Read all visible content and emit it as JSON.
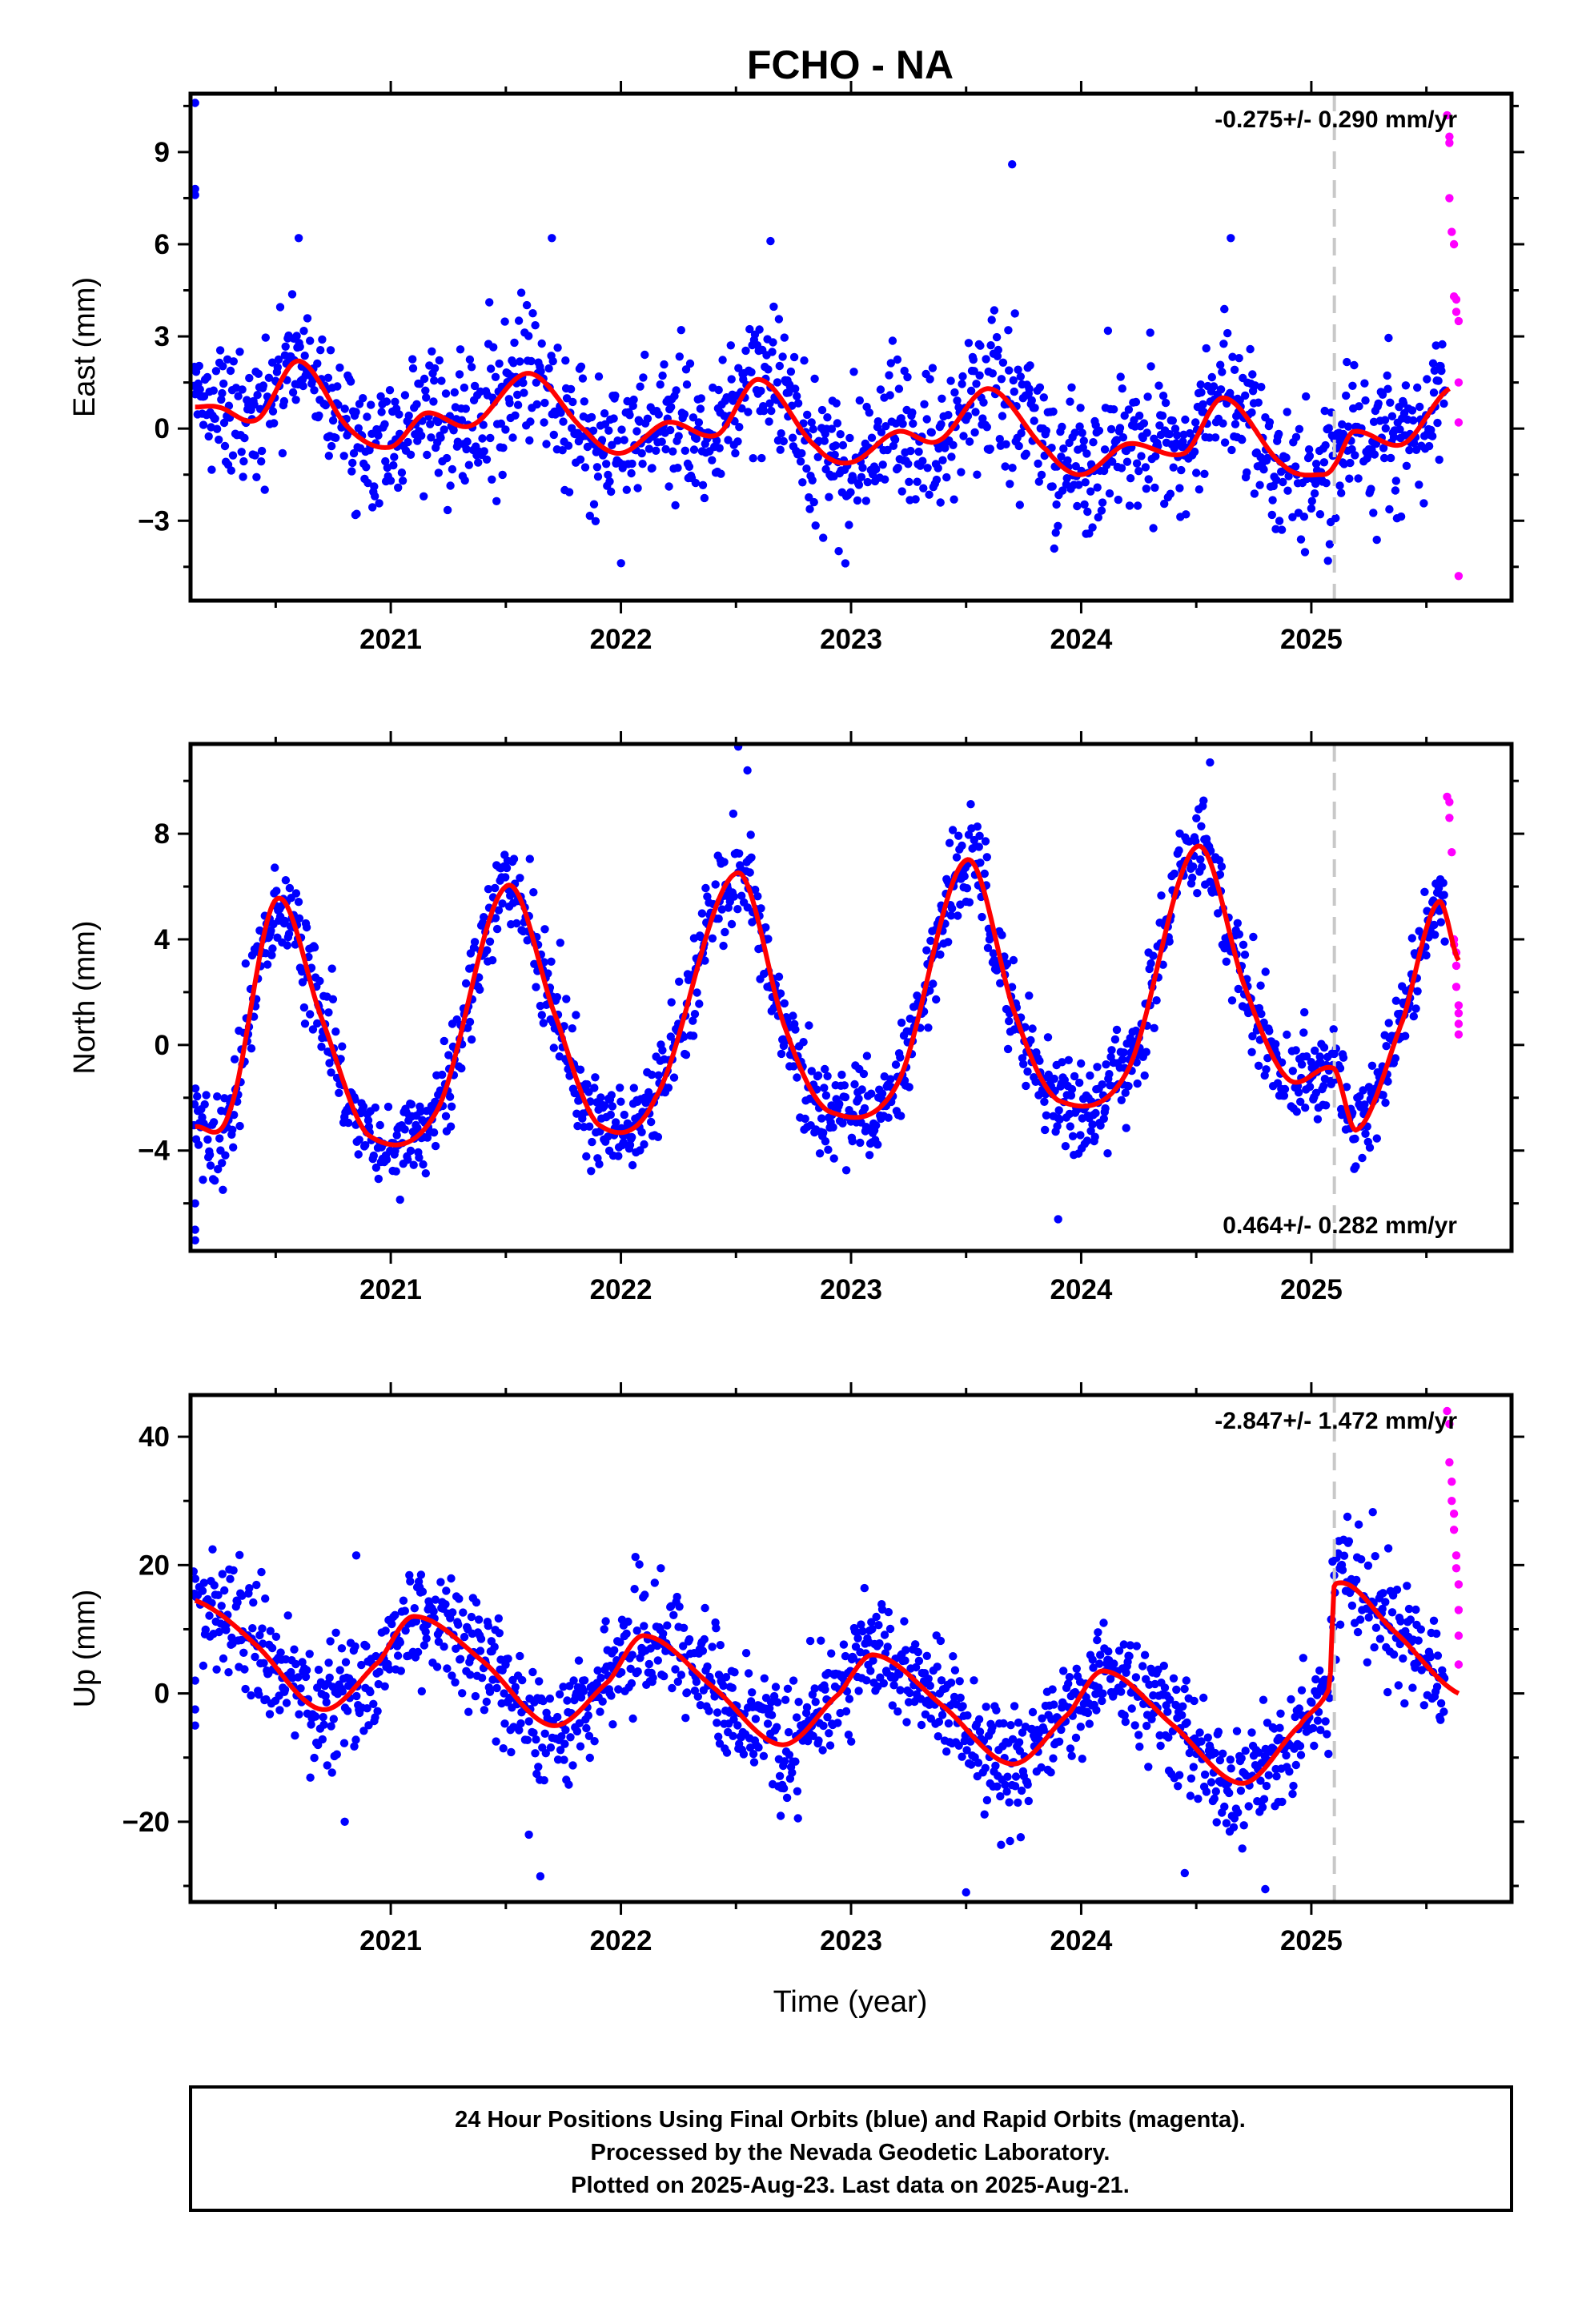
{
  "title": "FCHO - NA",
  "xlabel": "Time (year)",
  "footer": {
    "lines": [
      "24 Hour Positions Using Final Orbits (blue) and Rapid Orbits (magenta).",
      "Processed by the Nevada Geodetic Laboratory.",
      "Plotted on 2025-Aug-23. Last data on 2025-Aug-21."
    ]
  },
  "colors": {
    "final_orbits": "#0000ff",
    "rapid_orbits": "#ff00ff",
    "model": "#ff0000",
    "equipment_change": "#c8c8c8"
  },
  "chart_data": [
    {
      "type": "scatter",
      "component": "east",
      "ylabel": "East (mm)",
      "rate": "-0.275+/- 0.290 mm/yr",
      "rate_position": "top-right",
      "x_ticks": [
        2021,
        2022,
        2023,
        2024,
        2025
      ],
      "x_tick_labels": [
        "2021",
        "2022",
        "2023",
        "2024",
        "2025"
      ],
      "xlim": [
        2020.13,
        2025.87
      ],
      "y_ticks": [
        -3,
        0,
        3,
        6,
        9
      ],
      "y_tick_labels": [
        "−3",
        "0",
        "3",
        "6",
        "9"
      ],
      "ylim": [
        -5.6,
        10.9
      ],
      "offset_epoch": 2025.1,
      "rapid_start": 2025.58,
      "model": {
        "knots_x": [
          2020.15,
          2020.25,
          2020.42,
          2020.6,
          2020.82,
          2021.0,
          2021.15,
          2021.35,
          2021.6,
          2021.85,
          2022.0,
          2022.2,
          2022.42,
          2022.6,
          2022.85,
          2023.0,
          2023.2,
          2023.38,
          2023.6,
          2023.85,
          2024.0,
          2024.2,
          2024.45,
          2024.62,
          2024.88,
          2025.05,
          2025.1,
          2025.18,
          2025.4,
          2025.6
        ],
        "knots_y": [
          0.7,
          0.7,
          0.3,
          2.2,
          0.0,
          -0.6,
          0.5,
          0.1,
          1.8,
          -0.1,
          -0.8,
          0.2,
          -0.2,
          1.6,
          -0.6,
          -1.1,
          -0.1,
          -0.4,
          1.3,
          -0.7,
          -1.5,
          -0.5,
          -0.8,
          1.0,
          -1.2,
          -1.5,
          -1.2,
          -0.1,
          -0.5,
          1.3
        ],
        "noise": 1.1,
        "step_after_offset": 1.0
      },
      "outliers": [
        [
          2020.15,
          10.6
        ],
        [
          2020.15,
          7.8
        ],
        [
          2020.15,
          7.6
        ],
        [
          2023.7,
          8.6
        ],
        [
          2020.6,
          6.2
        ],
        [
          2021.7,
          6.2
        ],
        [
          2022.65,
          6.1
        ],
        [
          2024.65,
          6.2
        ]
      ],
      "rapid_points": [
        [
          2025.59,
          10.2
        ],
        [
          2025.6,
          9.5
        ],
        [
          2025.6,
          9.3
        ],
        [
          2025.6,
          7.5
        ],
        [
          2025.61,
          6.4
        ],
        [
          2025.62,
          6.0
        ],
        [
          2025.62,
          4.3
        ],
        [
          2025.63,
          4.2
        ],
        [
          2025.63,
          3.8
        ],
        [
          2025.64,
          3.5
        ],
        [
          2025.64,
          1.5
        ],
        [
          2025.64,
          0.2
        ],
        [
          2025.64,
          -4.8
        ]
      ]
    },
    {
      "type": "scatter",
      "component": "north",
      "ylabel": "North (mm)",
      "rate": "0.464+/- 0.282 mm/yr",
      "rate_position": "bottom-right",
      "x_ticks": [
        2021,
        2022,
        2023,
        2024,
        2025
      ],
      "x_tick_labels": [
        "2021",
        "2022",
        "2023",
        "2024",
        "2025"
      ],
      "xlim": [
        2020.13,
        2025.87
      ],
      "y_ticks": [
        -4,
        0,
        4,
        8
      ],
      "y_tick_labels": [
        "−4",
        "0",
        "4",
        "8"
      ],
      "ylim": [
        -7.8,
        11.4
      ],
      "offset_epoch": 2025.1,
      "rapid_start": 2025.58,
      "model": {
        "knots_x": [
          2020.15,
          2020.3,
          2020.5,
          2020.7,
          2020.9,
          2021.2,
          2021.5,
          2021.72,
          2021.9,
          2022.15,
          2022.5,
          2022.72,
          2022.9,
          2023.2,
          2023.5,
          2023.72,
          2023.9,
          2024.2,
          2024.5,
          2024.72,
          2024.9,
          2025.1,
          2025.2,
          2025.4,
          2025.55,
          2025.64
        ],
        "knots_y": [
          -3.1,
          -2.5,
          5.5,
          1.0,
          -3.4,
          -2.5,
          6.0,
          1.0,
          -3.0,
          -2.0,
          6.5,
          0.5,
          -2.5,
          -1.5,
          7.0,
          1.0,
          -2.1,
          -1.0,
          7.5,
          2.0,
          -1.3,
          -0.9,
          -3.2,
          1.0,
          5.4,
          3.2
        ],
        "noise": 0.9,
        "step_after_offset": -2.4
      },
      "outliers": [
        [
          2020.15,
          -7.0
        ],
        [
          2020.15,
          -7.4
        ],
        [
          2020.15,
          -6.0
        ],
        [
          2022.51,
          11.3
        ],
        [
          2022.55,
          10.4
        ],
        [
          2023.9,
          -6.6
        ],
        [
          2024.56,
          10.7
        ]
      ],
      "rapid_points": [
        [
          2025.59,
          9.4
        ],
        [
          2025.6,
          9.2
        ],
        [
          2025.6,
          8.6
        ],
        [
          2025.61,
          7.3
        ],
        [
          2025.62,
          4.0
        ],
        [
          2025.62,
          3.8
        ],
        [
          2025.63,
          3.5
        ],
        [
          2025.63,
          3.0
        ],
        [
          2025.63,
          2.2
        ],
        [
          2025.64,
          1.5
        ],
        [
          2025.64,
          1.2
        ],
        [
          2025.64,
          0.8
        ],
        [
          2025.64,
          0.4
        ]
      ]
    },
    {
      "type": "scatter",
      "component": "up",
      "ylabel": "Up (mm)",
      "rate": "-2.847+/- 1.472 mm/yr",
      "rate_position": "top-right",
      "x_ticks": [
        2021,
        2022,
        2023,
        2024,
        2025
      ],
      "x_tick_labels": [
        "2021",
        "2022",
        "2023",
        "2024",
        "2025"
      ],
      "xlim": [
        2020.13,
        2025.87
      ],
      "y_ticks": [
        -20,
        0,
        20,
        40
      ],
      "y_tick_labels": [
        "−20",
        "0",
        "20",
        "40"
      ],
      "ylim": [
        -32.5,
        46.5
      ],
      "offset_epoch": 2025.1,
      "rapid_start": 2025.58,
      "model": {
        "knots_x": [
          2020.15,
          2020.4,
          2020.7,
          2020.95,
          2021.1,
          2021.4,
          2021.7,
          2021.95,
          2022.1,
          2022.4,
          2022.7,
          2022.95,
          2023.1,
          2023.4,
          2023.7,
          2023.95,
          2024.1,
          2024.4,
          2024.7,
          2024.95,
          2025.08,
          2025.1,
          2025.35,
          2025.64
        ],
        "knots_y": [
          14.5,
          8.0,
          -2.5,
          5.0,
          12.0,
          5.0,
          -5.0,
          2.0,
          9.0,
          1.0,
          -8.0,
          0.0,
          6.0,
          -2.0,
          -11.0,
          -3.0,
          3.5,
          -5.0,
          -14.0,
          -5.0,
          1.0,
          17.0,
          10.0,
          0.0
        ],
        "noise": 4.5,
        "step_after_offset": 16.0
      },
      "outliers": [
        [
          2020.15,
          -5.0
        ],
        [
          2020.15,
          -2.5
        ],
        [
          2020.15,
          2.0
        ],
        [
          2021.6,
          -22.0
        ],
        [
          2021.65,
          -28.5
        ],
        [
          2023.5,
          -31.0
        ],
        [
          2024.45,
          -28.0
        ],
        [
          2024.8,
          -30.5
        ],
        [
          2020.8,
          -20.0
        ],
        [
          2020.85,
          21.5
        ]
      ],
      "rapid_points": [
        [
          2025.59,
          44.0
        ],
        [
          2025.6,
          42.0
        ],
        [
          2025.6,
          36.0
        ],
        [
          2025.61,
          33.0
        ],
        [
          2025.61,
          30.0
        ],
        [
          2025.62,
          28.0
        ],
        [
          2025.62,
          25.5
        ],
        [
          2025.63,
          21.5
        ],
        [
          2025.63,
          19.5
        ],
        [
          2025.64,
          17.0
        ],
        [
          2025.64,
          13.0
        ],
        [
          2025.64,
          9.0
        ],
        [
          2025.64,
          4.5
        ]
      ]
    }
  ]
}
